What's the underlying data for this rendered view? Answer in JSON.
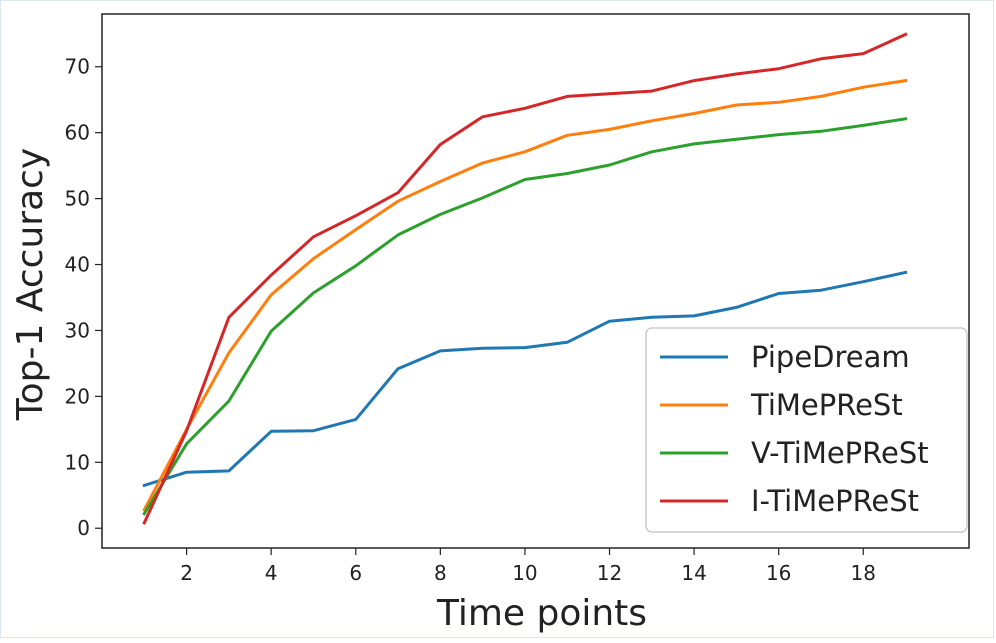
{
  "chart_data": {
    "type": "line",
    "title": "",
    "xlabel": "Time points",
    "ylabel": "Top-1 Accuracy",
    "xlim": [
      0.0,
      20.5
    ],
    "ylim": [
      -3,
      78
    ],
    "xticks": [
      2,
      4,
      6,
      8,
      10,
      12,
      14,
      16,
      18
    ],
    "xtick_labels": [
      "2",
      "4",
      "6",
      "8",
      "10",
      "12",
      "14",
      "16",
      "18"
    ],
    "yticks": [
      0,
      10,
      20,
      30,
      40,
      50,
      60,
      70
    ],
    "ytick_labels": [
      "0",
      "10",
      "20",
      "30",
      "40",
      "50",
      "60",
      "70"
    ],
    "grid": false,
    "legend_position": "lower-right",
    "x": [
      1,
      2,
      3,
      4,
      5,
      6,
      7,
      8,
      9,
      10,
      11,
      12,
      13,
      14,
      15,
      16,
      17,
      18,
      19
    ],
    "series": [
      {
        "name": "PipeDream",
        "color": "#1f77b4",
        "values": [
          6.5,
          8.5,
          8.7,
          14.7,
          14.8,
          16.5,
          24.2,
          26.9,
          27.3,
          27.4,
          28.2,
          31.4,
          32.0,
          32.2,
          33.5,
          35.6,
          36.1,
          37.4,
          38.8
        ]
      },
      {
        "name": "TiMePReSt",
        "color": "#ff7f0e",
        "values": [
          2.8,
          15.0,
          26.6,
          35.4,
          40.9,
          45.3,
          49.6,
          52.6,
          55.4,
          57.1,
          59.6,
          60.5,
          61.8,
          62.9,
          64.2,
          64.6,
          65.5,
          66.9,
          67.9
        ]
      },
      {
        "name": "V-TiMePReSt",
        "color": "#2ca02c",
        "values": [
          2.2,
          12.8,
          19.3,
          29.9,
          35.7,
          39.8,
          44.5,
          47.6,
          50.1,
          52.9,
          53.8,
          55.1,
          57.1,
          58.3,
          59.0,
          59.7,
          60.2,
          61.1,
          62.1
        ]
      },
      {
        "name": "I-TiMePReSt",
        "color": "#d62728",
        "values": [
          0.8,
          14.8,
          32.0,
          38.4,
          44.2,
          47.4,
          50.9,
          58.2,
          62.4,
          63.7,
          65.5,
          65.9,
          66.3,
          67.9,
          68.9,
          69.7,
          71.2,
          72.0,
          74.9
        ]
      }
    ]
  }
}
